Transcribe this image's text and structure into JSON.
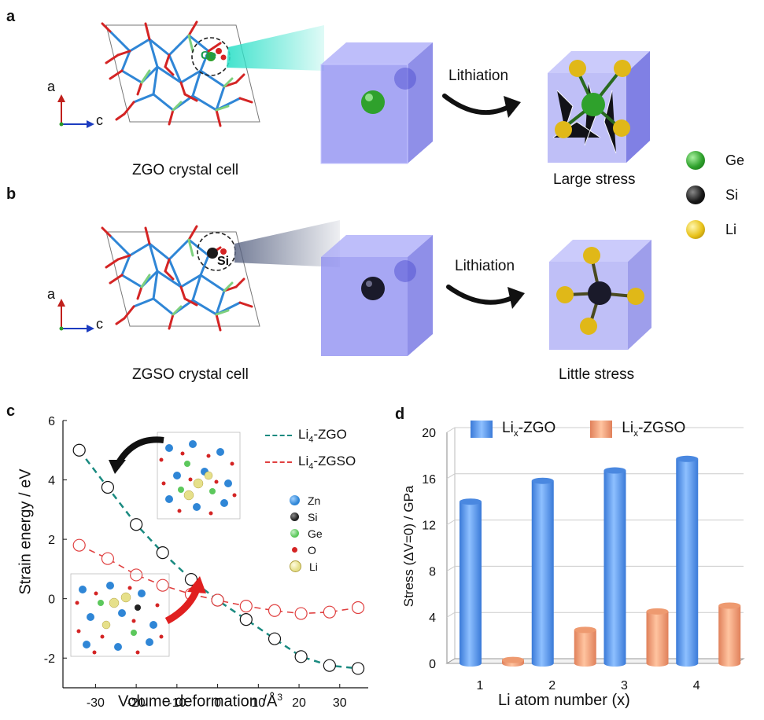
{
  "panels": {
    "a": {
      "letter": "a",
      "site_label": "Ge",
      "axis_a": "a",
      "axis_c": "c",
      "caption": "ZGO crystal cell",
      "arrow_label": "Lithiation",
      "result_caption": "Large stress"
    },
    "b": {
      "letter": "b",
      "site_label": "Si",
      "axis_a": "a",
      "axis_c": "c",
      "caption": "ZGSO crystal cell",
      "arrow_label": "Lithiation",
      "result_caption": "Little stress"
    },
    "legend_ab": [
      {
        "label": "Ge",
        "color": "#2fa12c"
      },
      {
        "label": "Si",
        "color": "#1a1a1a"
      },
      {
        "label": "Li",
        "color": "#e8c21a"
      }
    ],
    "c": {
      "letter": "c"
    },
    "d": {
      "letter": "d"
    }
  },
  "colors": {
    "zn": "#2f86d6",
    "ge_bond": "#7ed07e",
    "o": "#d42424",
    "cube": "#8a8af0",
    "teal": "#1a8a80",
    "red_dash": "#e04040",
    "bar_blue": "#5a9ef0",
    "bar_orange": "#f4a070"
  },
  "chart_data": [
    {
      "type": "scatter",
      "panel": "c",
      "xlabel": "Volume deformation /Å",
      "xlabel_sup": "3",
      "ylabel": "Strain energy / eV",
      "xlim": [
        -38,
        37
      ],
      "ylim": [
        -3,
        6
      ],
      "xticks": [
        -30,
        -20,
        -10,
        0,
        10,
        20,
        30
      ],
      "yticks": [
        -2,
        0,
        2,
        4,
        6
      ],
      "xtick_labels": [
        "-30",
        "-20",
        "-10",
        "0",
        "10",
        "20",
        "30"
      ],
      "ytick_labels": [
        "-2",
        "0",
        "2",
        "4",
        "6"
      ],
      "series": [
        {
          "name": "Li4-ZGO",
          "name_main": "Li",
          "name_sub": "4",
          "name_tail": "-ZGO",
          "color": "#1a8a80",
          "marker_color": "#111111",
          "x": [
            -34,
            -27,
            -20,
            -13.5,
            -6.5,
            0,
            7,
            14,
            20.5,
            27.5,
            34.5
          ],
          "y": [
            5.0,
            3.75,
            2.5,
            1.55,
            0.65,
            -0.05,
            -0.7,
            -1.35,
            -1.95,
            -2.25,
            -2.35
          ]
        },
        {
          "name": "Li4-ZGSO",
          "name_main": "Li",
          "name_sub": "4",
          "name_tail": "-ZGSO",
          "color": "#e04040",
          "marker_color": "#e04040",
          "x": [
            -34,
            -27,
            -20,
            -13.5,
            -6.5,
            0,
            7,
            14,
            20.5,
            27.5,
            34.5
          ],
          "y": [
            1.8,
            1.35,
            0.8,
            0.45,
            0.15,
            -0.05,
            -0.25,
            -0.4,
            -0.5,
            -0.45,
            -0.3
          ]
        }
      ],
      "inset_legend": [
        {
          "label": "Zn",
          "color": "#2f86d6"
        },
        {
          "label": "Si",
          "color": "#222222"
        },
        {
          "label": "Ge",
          "color": "#5cc85c"
        },
        {
          "label": "O",
          "color": "#d42424"
        },
        {
          "label": "Li",
          "color": "#e6e08a"
        }
      ]
    },
    {
      "type": "bar",
      "panel": "d",
      "categories": [
        "1",
        "2",
        "3",
        "4"
      ],
      "xlabel": "Li atom number (x)",
      "ylabel": "Stress (ΔV=0) / GPa",
      "ylim": [
        0,
        20
      ],
      "yticks": [
        0,
        4,
        8,
        12,
        16,
        20
      ],
      "ytick_labels": [
        "0",
        "4",
        "8",
        "12",
        "16",
        "20"
      ],
      "series": [
        {
          "name": "Lix-ZGO",
          "name_main": "Li",
          "name_sub": "x",
          "name_tail": "-ZGO",
          "color": "#5a9ef0",
          "values": [
            14.0,
            15.8,
            16.7,
            17.7
          ]
        },
        {
          "name": "Lix-ZGSO",
          "name_main": "Li",
          "name_sub": "x",
          "name_tail": "-ZGSO",
          "color": "#f4a070",
          "values": [
            0.3,
            2.9,
            4.5,
            5.0
          ]
        }
      ]
    }
  ]
}
